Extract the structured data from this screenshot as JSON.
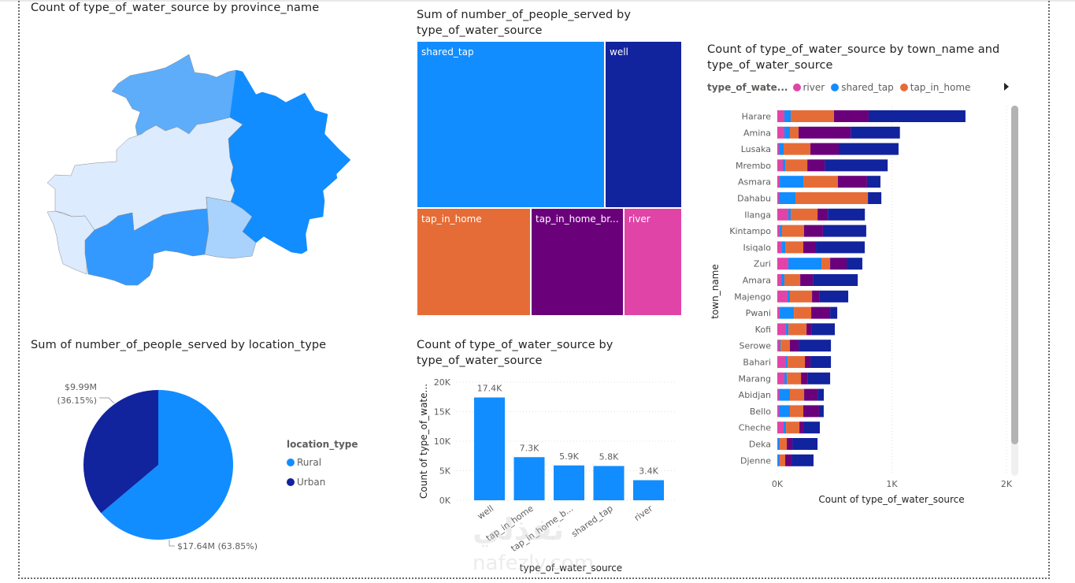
{
  "colors": {
    "river": "#E044A7",
    "shared_tap": "#118DFF",
    "tap_in_home": "#E66C37",
    "tap_in_home_broken": "#6B007B",
    "well": "#12239E",
    "rural": "#118DFF",
    "urban": "#12239E"
  },
  "chart_data": [
    {
      "id": "map",
      "type": "map",
      "title": "Count of type_of_water_source by province_name",
      "note": "filled choropleth map; province names not shown",
      "regions": [
        {
          "shade": "darkest",
          "color": "#118DFF"
        },
        {
          "shade": "dark",
          "color": "#3399FF"
        },
        {
          "shade": "medium",
          "color": "#5DADFA"
        },
        {
          "shade": "light",
          "color": "#A9D3FC"
        },
        {
          "shade": "lightest",
          "color": "#DCEBFD"
        }
      ]
    },
    {
      "id": "treemap",
      "type": "treemap",
      "title": "Sum of number_of_people_served by type_of_water_source",
      "categories": [
        "shared_tap",
        "well",
        "tap_in_home",
        "tap_in_home_br...",
        "river"
      ],
      "share_pct": [
        47.5,
        18.5,
        13.8,
        11.1,
        6.3
      ]
    },
    {
      "id": "stacked",
      "type": "bar",
      "orientation": "horizontal-stacked",
      "title": "Count of type_of_water_source by town_name and type_of_water_source",
      "xlabel": "Count of type_of_water_source",
      "ylabel": "town_name",
      "xlim": [
        0,
        2000
      ],
      "xticks": [
        "0K",
        "1K",
        "2K"
      ],
      "legend_title": "type_of_wate...",
      "legend_visible": [
        "river",
        "shared_tap",
        "tap_in_home"
      ],
      "legend_position": "top",
      "categories": [
        "Harare",
        "Amina",
        "Lusaka",
        "Mrembo",
        "Asmara",
        "Dahabu",
        "Ilanga",
        "Kintampo",
        "Isiqalo",
        "Zuri",
        "Amara",
        "Majengo",
        "Pwani",
        "Kofi",
        "Serowe",
        "Bahari",
        "Marang",
        "Abidjan",
        "Bello",
        "Cheche",
        "Deka",
        "Djenne"
      ],
      "series": [
        {
          "name": "river",
          "values": [
            62,
            62,
            14,
            48,
            21,
            14,
            96,
            21,
            41,
            96,
            34,
            89,
            21,
            76,
            14,
            76,
            62,
            14,
            14,
            55,
            7,
            7
          ]
        },
        {
          "name": "shared_tap",
          "values": [
            55,
            48,
            41,
            21,
            206,
            144,
            21,
            20,
            28,
            289,
            28,
            21,
            124,
            21,
            14,
            14,
            21,
            96,
            96,
            21,
            14,
            14
          ]
        },
        {
          "name": "tap_in_home",
          "values": [
            378,
            76,
            234,
            193,
            302,
            633,
            234,
            192,
            158,
            76,
            138,
            193,
            151,
            158,
            82,
            151,
            124,
            124,
            117,
            117,
            62,
            48
          ]
        },
        {
          "name": "tap_in_home_broken",
          "values": [
            302,
            454,
            247,
            151,
            254,
            0,
            90,
            165,
            110,
            144,
            110,
            62,
            165,
            41,
            76,
            48,
            55,
            117,
            137,
            34,
            48,
            55
          ]
        },
        {
          "name": "well",
          "values": [
            845,
            430,
            522,
            550,
            117,
            117,
            323,
            378,
            426,
            137,
            392,
            254,
            62,
            206,
            282,
            179,
            199,
            55,
            41,
            144,
            220,
            192
          ]
        }
      ]
    },
    {
      "id": "pie",
      "type": "pie",
      "title": "Sum of number_of_people_served by location_type",
      "legend_title": "location_type",
      "legend_position": "right",
      "slices": [
        {
          "label": "Rural",
          "value": 17.64,
          "pct": 63.85,
          "data_label": "$17.64M (63.85%)"
        },
        {
          "label": "Urban",
          "value": 9.99,
          "pct": 36.15,
          "data_label_line1": "$9.99M",
          "data_label_line2": "(36.15%)"
        }
      ]
    },
    {
      "id": "column",
      "type": "bar",
      "title": "Count of type_of_water_source by type_of_water_source",
      "xlabel": "type_of_water_source",
      "ylabel": "Count of type_of_wate...",
      "ylim": [
        0,
        20000
      ],
      "yticks": [
        "0K",
        "5K",
        "10K",
        "15K",
        "20K"
      ],
      "categories": [
        "well",
        "tap_in_home",
        "tap_in_home_b...",
        "shared_tap",
        "river"
      ],
      "values": [
        17400,
        7300,
        5900,
        5800,
        3400
      ],
      "data_labels": [
        "17.4K",
        "7.3K",
        "5.9K",
        "5.8K",
        "3.4K"
      ]
    }
  ],
  "watermark": {
    "line1": "نفذلي",
    "line2": "nafezly.com"
  }
}
